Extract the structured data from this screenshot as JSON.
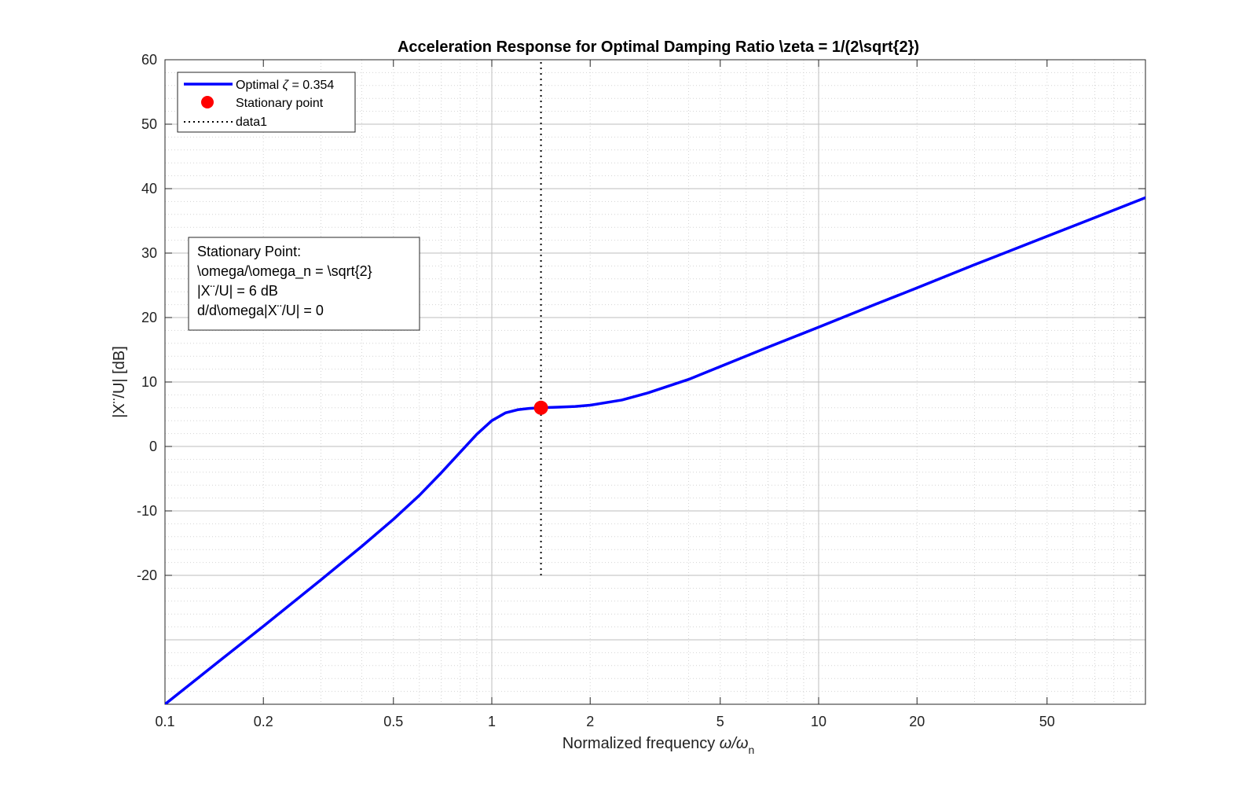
{
  "chart_data": {
    "type": "line",
    "title": "Acceleration Response for Optimal Damping Ratio \\zeta = 1/(2\\sqrt{2})",
    "xlabel": "Normalized frequency",
    "xlabel_math": "ω/ω",
    "xlabel_sub": "n",
    "ylabel": "|X¨/U| [dB]",
    "xscale": "log",
    "xlim": [
      0.1,
      100
    ],
    "ylim": [
      -40,
      60
    ],
    "xticks": [
      0.1,
      0.2,
      0.5,
      1,
      2,
      5,
      10,
      20,
      50
    ],
    "xtick_labels": [
      "0.1",
      "0.2",
      "0.5",
      "1",
      "2",
      "5",
      "10",
      "20",
      "50"
    ],
    "yticks": [
      -20,
      -10,
      0,
      10,
      20,
      30,
      40,
      50,
      60
    ],
    "ytick_labels": [
      "-20",
      "-10",
      "0",
      "10",
      "20",
      "30",
      "40",
      "50",
      "60"
    ],
    "grid": true,
    "minor_grid": true,
    "legend_placement": "top-left",
    "series": [
      {
        "name": "Optimal ζ = 0.354",
        "legend_prefix": "Optimal ",
        "legend_symbol": "ζ",
        "legend_suffix": " = 0.354",
        "color": "#0000ff",
        "style": "solid",
        "x": [
          0.1,
          0.15,
          0.2,
          0.3,
          0.4,
          0.5,
          0.6,
          0.7,
          0.8,
          0.9,
          1.0,
          1.1,
          1.2,
          1.3,
          1.414,
          1.6,
          1.8,
          2.0,
          2.5,
          3,
          4,
          5,
          7,
          10,
          15,
          20,
          30,
          50,
          70,
          100
        ],
        "y": [
          -40.0,
          -32.9,
          -27.9,
          -20.7,
          -15.5,
          -11.3,
          -7.6,
          -4.1,
          -0.9,
          1.9,
          4.0,
          5.2,
          5.7,
          5.9,
          6.0,
          6.1,
          6.2,
          6.4,
          7.2,
          8.3,
          10.4,
          12.4,
          15.4,
          18.5,
          22.1,
          24.6,
          28.2,
          32.6,
          35.5,
          38.6
        ]
      },
      {
        "name": "Stationary point",
        "color": "#ff0000",
        "style": "marker",
        "x": [
          1.414
        ],
        "y": [
          6.0
        ]
      },
      {
        "name": "data1",
        "color": "#000000",
        "style": "dotted",
        "x": [
          1.414,
          1.414
        ],
        "y": [
          -20,
          60
        ]
      }
    ],
    "annotation": {
      "lines": [
        "Stationary Point:",
        "\\omega/\\omega_n = \\sqrt{2}",
        "|X¨/U| = 6 dB",
        "d/d\\omega|X¨/U| = 0"
      ]
    }
  }
}
